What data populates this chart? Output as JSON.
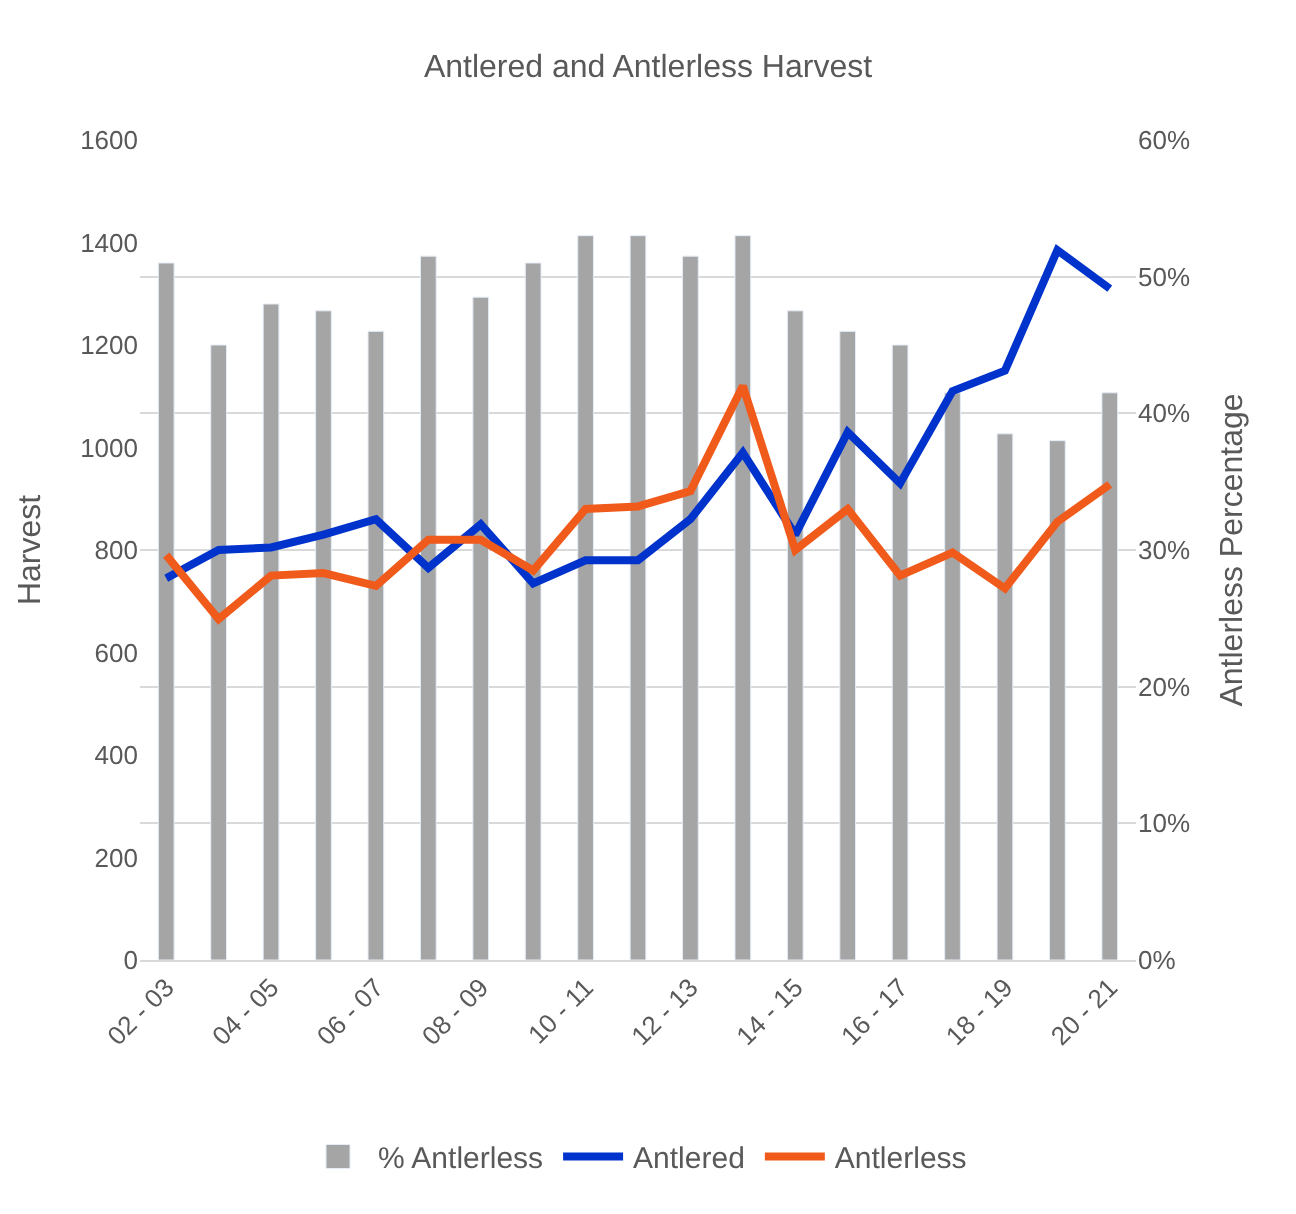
{
  "chart_data": {
    "type": "bar",
    "title": "Antlered and Antlerless Harvest",
    "ylabel": "Harvest",
    "y2label": "Antlerless Percentage",
    "categories": [
      "02 - 03",
      null,
      "04 - 05",
      null,
      "06 - 07",
      null,
      "08 - 09",
      null,
      "10 - 11",
      null,
      "12 - 13",
      null,
      "14 - 15",
      null,
      "16 - 17",
      null,
      "18 - 19",
      null,
      "20 - 21"
    ],
    "series": [
      {
        "name": "% Antlerless",
        "axis": "y2",
        "color": "#a5a5a5",
        "values": [
          51,
          45,
          48,
          47.5,
          46,
          51.5,
          48.5,
          51,
          53,
          53,
          51.5,
          53,
          47.5,
          46,
          45,
          41.5,
          38.5,
          38,
          41.5
        ]
      },
      {
        "name": "Antlered",
        "type": "line",
        "color": "#0033cc",
        "values": [
          745,
          800,
          805,
          830,
          860,
          765,
          850,
          735,
          780,
          780,
          860,
          990,
          830,
          1030,
          930,
          1110,
          1150,
          1385,
          1310
        ]
      },
      {
        "name": "Antlerless",
        "type": "line",
        "color": "#f05a1a",
        "values": [
          790,
          665,
          750,
          755,
          730,
          820,
          820,
          760,
          880,
          885,
          915,
          1120,
          800,
          880,
          750,
          795,
          725,
          855,
          928
        ]
      }
    ],
    "ylim": [
      0,
      1600
    ],
    "yticks": [
      0,
      200,
      400,
      600,
      800,
      1000,
      1200,
      1400,
      1600
    ],
    "y2lim": [
      0,
      60
    ],
    "y2ticks": [
      {
        "value": 0,
        "label": "0%"
      },
      {
        "value": 10,
        "label": "10%"
      },
      {
        "value": 20,
        "label": "20%"
      },
      {
        "value": 30,
        "label": "30%"
      },
      {
        "value": 40,
        "label": "40%"
      },
      {
        "value": 50,
        "label": "50%"
      },
      {
        "value": 60,
        "label": "60%"
      }
    ],
    "grid": "y",
    "legend": "bottom",
    "marker": "none",
    "line_style": "solid"
  }
}
